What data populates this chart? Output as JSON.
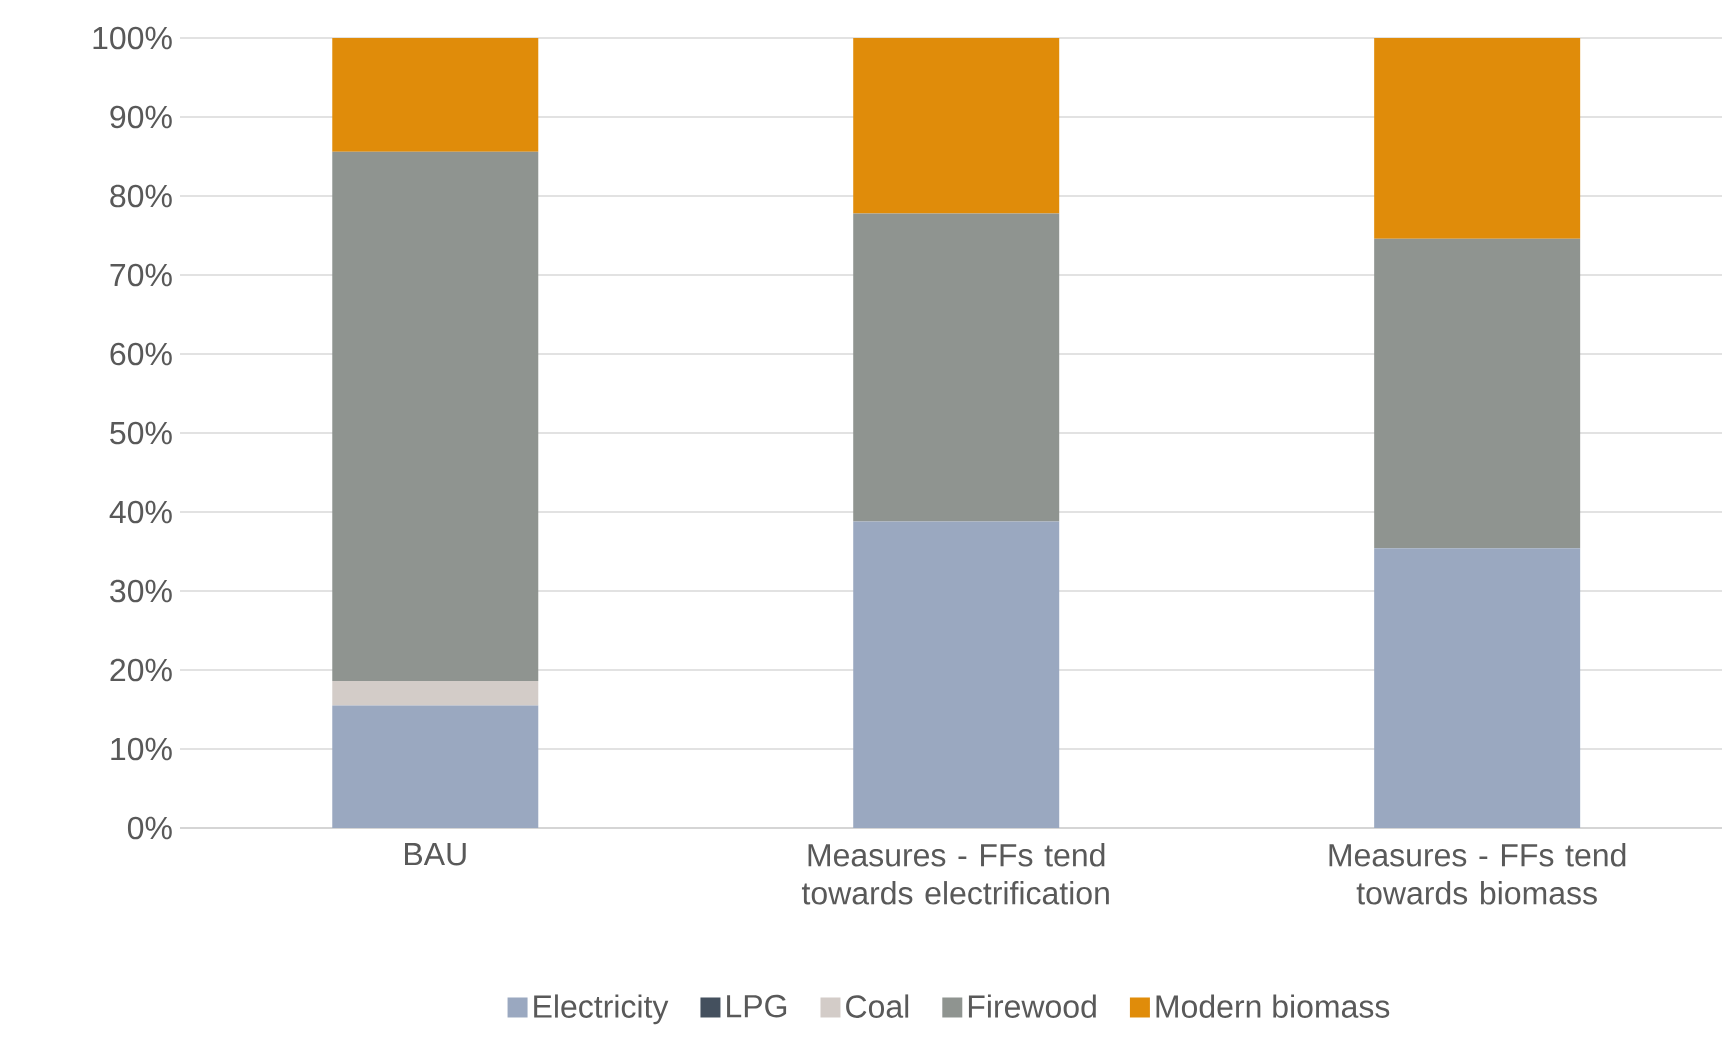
{
  "chart_data": {
    "type": "bar",
    "stacked": true,
    "categories": [
      "BAU",
      "Measures - FFs tend towards electrification",
      "Measures - FFs tend towards biomass"
    ],
    "series": [
      {
        "name": "Electricity",
        "color": "#9aa8c0",
        "values": [
          15.5,
          38.8,
          35.4
        ]
      },
      {
        "name": "LPG",
        "color": "#44505e",
        "values": [
          0,
          0,
          0
        ]
      },
      {
        "name": "Coal",
        "color": "#d3ccc8",
        "values": [
          3.1,
          0,
          0
        ]
      },
      {
        "name": "Firewood",
        "color": "#8f9490",
        "values": [
          67,
          39,
          39.2
        ]
      },
      {
        "name": "Modern biomass",
        "color": "#e08c0a",
        "values": [
          14.4,
          22.2,
          25.4
        ]
      }
    ],
    "ylim": [
      0,
      100
    ],
    "yticks": [
      {
        "value": 0,
        "label": "0%"
      },
      {
        "value": 10,
        "label": "10%"
      },
      {
        "value": 20,
        "label": "20%"
      },
      {
        "value": 30,
        "label": "30%"
      },
      {
        "value": 40,
        "label": "40%"
      },
      {
        "value": 50,
        "label": "50%"
      },
      {
        "value": 60,
        "label": "60%"
      },
      {
        "value": 70,
        "label": "70%"
      },
      {
        "value": 80,
        "label": "80%"
      },
      {
        "value": 90,
        "label": "90%"
      },
      {
        "value": 100,
        "label": "100%"
      }
    ],
    "grid": "y",
    "legend": "bottom"
  }
}
